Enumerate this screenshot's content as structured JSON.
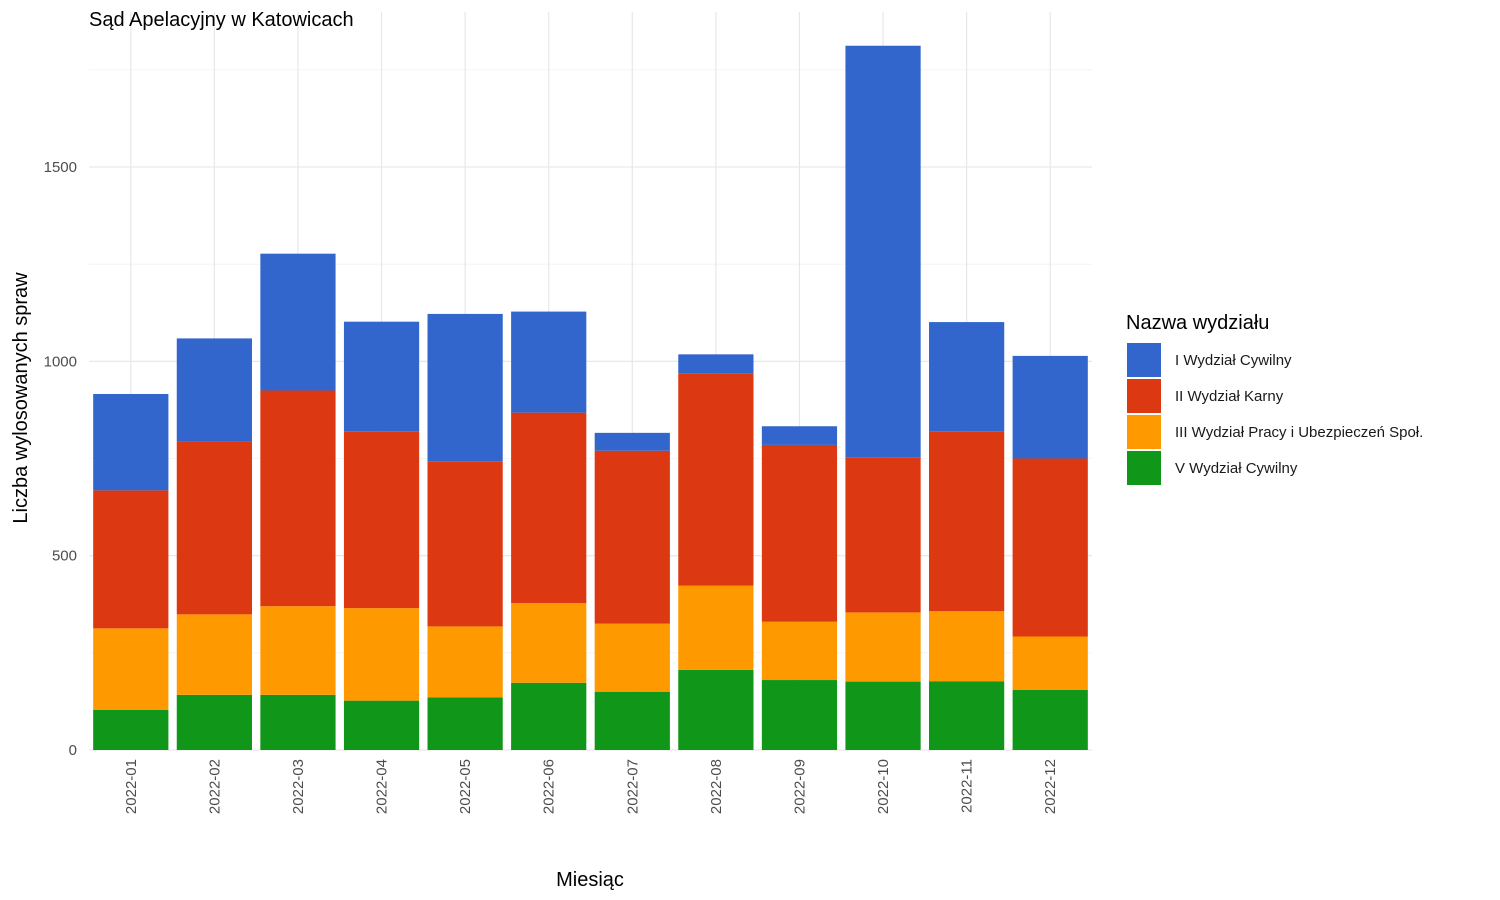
{
  "chart_data": {
    "type": "bar",
    "stacked": true,
    "title": "Sąd Apelacyjny w Katowicach",
    "xlabel": "Miesiąc",
    "ylabel": "Liczba wylosowanych spraw",
    "ylim": [
      0,
      1900
    ],
    "yticks": [
      0,
      500,
      1000,
      1500
    ],
    "grid": true,
    "legend_title": "Nazwa wydziału",
    "legend_position": "right",
    "categories": [
      "2022-01",
      "2022-02",
      "2022-03",
      "2022-04",
      "2022-05",
      "2022-06",
      "2022-07",
      "2022-08",
      "2022-09",
      "2022-10",
      "2022-11",
      "2022-12"
    ],
    "series": [
      {
        "name": "V Wydział Cywilny",
        "color": "#109618",
        "values": [
          103,
          142,
          142,
          127,
          135,
          173,
          150,
          206,
          180,
          176,
          177,
          155
        ]
      },
      {
        "name": "III Wydział Pracy i Ubezpieczeń Społ.",
        "color": "#FF9900",
        "values": [
          210,
          207,
          228,
          238,
          183,
          205,
          175,
          217,
          150,
          178,
          180,
          137
        ]
      },
      {
        "name": "II Wydział Karny",
        "color": "#DC3912",
        "values": [
          355,
          445,
          555,
          455,
          425,
          490,
          445,
          545,
          455,
          398,
          463,
          458
        ]
      },
      {
        "name": "I Wydział Cywilny",
        "color": "#3366CC",
        "values": [
          248,
          265,
          352,
          282,
          379,
          260,
          46,
          50,
          48,
          1060,
          281,
          264
        ]
      }
    ],
    "legend_order": [
      "I Wydział Cywilny",
      "II Wydział Karny",
      "III Wydział Pracy i Ubezpieczeń Społ.",
      "V Wydział Cywilny"
    ]
  }
}
